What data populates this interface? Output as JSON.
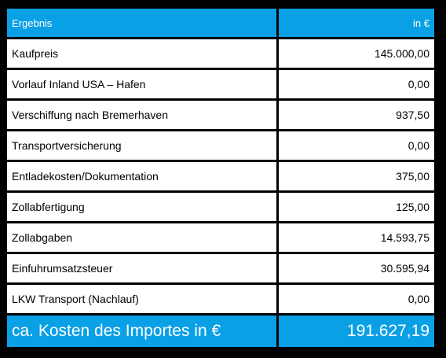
{
  "header": {
    "label": "Ergebnis",
    "unit": "in €"
  },
  "rows": [
    {
      "label": "Kaufpreis",
      "value": "145.000,00"
    },
    {
      "label": "Vorlauf Inland USA – Hafen",
      "value": "0,00"
    },
    {
      "label": "Verschiffung nach Bremerhaven",
      "value": "937,50"
    },
    {
      "label": "Transportversicherung",
      "value": "0,00"
    },
    {
      "label": "Entladekosten/Dokumentation",
      "value": "375,00"
    },
    {
      "label": "Zollabfertigung",
      "value": "125,00"
    },
    {
      "label": "Zollabgaben",
      "value": "14.593,75"
    },
    {
      "label": "Einfuhrumsatzsteuer",
      "value": "30.595,94"
    },
    {
      "label": "LKW Transport (Nachlauf)",
      "value": "0,00"
    }
  ],
  "total": {
    "label": "ca. Kosten des Importes in €",
    "value": "191.627,19"
  },
  "colors": {
    "accent": "#0aa0e6",
    "row_background": "#ffffff",
    "page_background": "#000000"
  }
}
